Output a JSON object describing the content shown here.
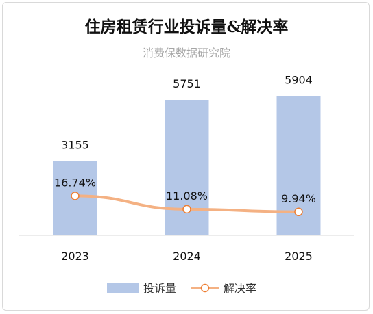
{
  "chart_data": {
    "type": "bar",
    "title": "住房租赁行业投诉量&解决率",
    "subtitle": "消费保数据研究院",
    "categories": [
      "2023",
      "2024",
      "2025"
    ],
    "series": [
      {
        "name": "投诉量",
        "type": "bar",
        "values": [
          3155,
          5751,
          5904
        ],
        "labels": [
          "3155",
          "5751",
          "5904"
        ],
        "color": "#b4c7e7"
      },
      {
        "name": "解决率",
        "type": "line",
        "values": [
          16.74,
          11.08,
          9.94
        ],
        "labels": [
          "16.74%",
          "11.08%",
          "9.94%"
        ],
        "unit": "%",
        "color": "#f4b183"
      }
    ],
    "ylim": [
      0,
      7000
    ],
    "y2lim": [
      0,
      70
    ],
    "grid": false,
    "legend": "bottom"
  }
}
